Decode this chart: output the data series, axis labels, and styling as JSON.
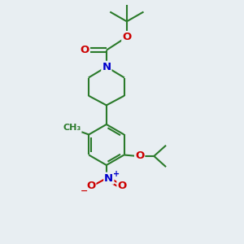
{
  "bg_color": "#e8eef2",
  "bond_color": "#2a7a2a",
  "atom_colors": {
    "O": "#cc0000",
    "N": "#0000cc",
    "C": "#2a7a2a"
  },
  "bond_width": 1.5,
  "fig_size": [
    3.0,
    3.0
  ],
  "dpi": 100
}
